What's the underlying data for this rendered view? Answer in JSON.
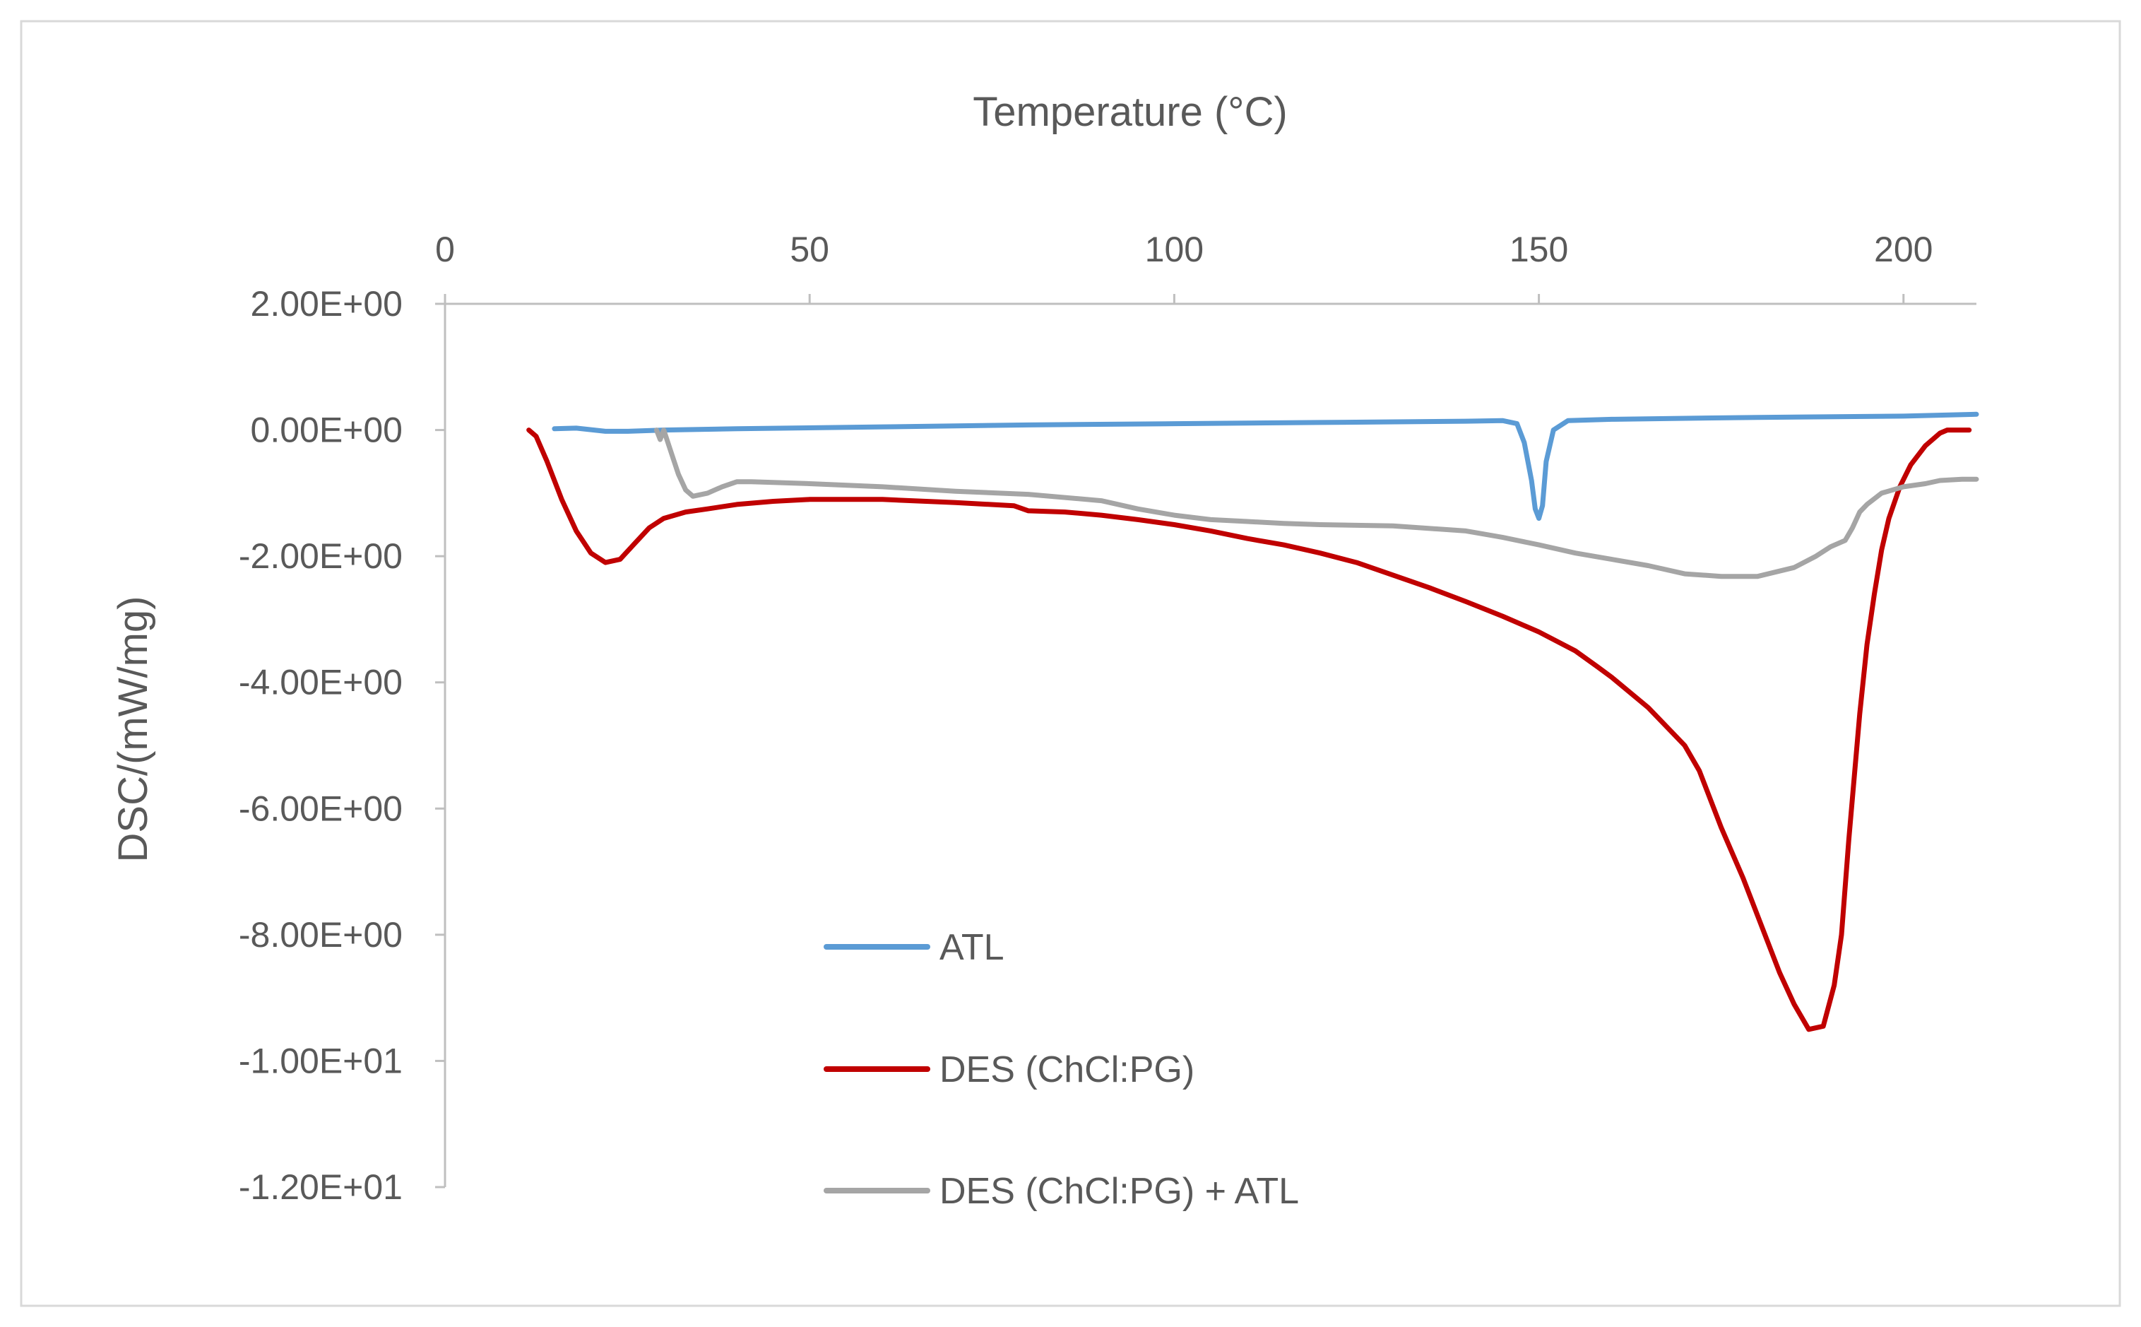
{
  "chart_data": {
    "type": "line",
    "title": "",
    "xlabel": "Temperature (°C)",
    "ylabel": "DSC/(mW/mg)",
    "x_axis_position": "top",
    "xlim": [
      0,
      210
    ],
    "ylim": [
      -12,
      2
    ],
    "x_ticks": [
      0,
      50,
      100,
      150,
      200
    ],
    "x_tick_labels": [
      "0",
      "50",
      "100",
      "150",
      "200"
    ],
    "y_ticks": [
      2,
      0,
      -2,
      -4,
      -6,
      -8,
      -10,
      -12
    ],
    "y_tick_labels": [
      "2.00E+00",
      "0.00E+00",
      "-2.00E+00",
      "-4.00E+00",
      "-6.00E+00",
      "-8.00E+00",
      "-1.00E+01",
      "-1.20E+01"
    ],
    "grid": false,
    "legend_position": "bottom-center-left",
    "series": [
      {
        "name": "ATL",
        "color": "#5B9BD5",
        "x": [
          15,
          18,
          22,
          25,
          30,
          40,
          60,
          80,
          100,
          120,
          140,
          145,
          147,
          148,
          149,
          149.5,
          150,
          150.5,
          151,
          152,
          154,
          160,
          180,
          200,
          210
        ],
        "y": [
          0.02,
          0.03,
          -0.02,
          -0.02,
          0.0,
          0.02,
          0.05,
          0.08,
          0.1,
          0.12,
          0.14,
          0.15,
          0.1,
          -0.2,
          -0.8,
          -1.25,
          -1.4,
          -1.2,
          -0.5,
          0.0,
          0.15,
          0.17,
          0.2,
          0.22,
          0.25
        ]
      },
      {
        "name": "DES (ChCl:PG)",
        "color": "#C00000",
        "x": [
          11.5,
          12.5,
          14,
          16,
          18,
          20,
          22,
          24,
          26,
          28,
          30,
          33,
          36,
          40,
          45,
          50,
          60,
          70,
          78,
          80,
          85,
          90,
          95,
          100,
          105,
          110,
          115,
          120,
          125,
          130,
          135,
          140,
          145,
          150,
          155,
          158,
          160,
          165,
          170,
          172,
          175,
          178,
          180,
          183,
          185,
          187,
          189,
          190.5,
          191.5,
          192.5,
          194,
          195,
          196,
          197,
          198,
          199.5,
          201,
          203,
          205,
          206,
          207,
          208,
          209
        ],
        "y": [
          0.0,
          -0.1,
          -0.5,
          -1.1,
          -1.6,
          -1.95,
          -2.1,
          -2.05,
          -1.8,
          -1.55,
          -1.4,
          -1.3,
          -1.25,
          -1.18,
          -1.13,
          -1.1,
          -1.1,
          -1.15,
          -1.2,
          -1.28,
          -1.3,
          -1.35,
          -1.42,
          -1.5,
          -1.6,
          -1.72,
          -1.82,
          -1.95,
          -2.1,
          -2.3,
          -2.5,
          -2.72,
          -2.95,
          -3.2,
          -3.5,
          -3.75,
          -3.92,
          -4.4,
          -5.0,
          -5.4,
          -6.3,
          -7.1,
          -7.7,
          -8.6,
          -9.1,
          -9.5,
          -9.45,
          -8.8,
          -8.0,
          -6.5,
          -4.5,
          -3.4,
          -2.6,
          -1.9,
          -1.4,
          -0.9,
          -0.55,
          -0.25,
          -0.05,
          0.0,
          0.0,
          0.0,
          0.0
        ]
      },
      {
        "name": "DES (ChCl:PG) + ATL",
        "color": "#A5A5A5",
        "x": [
          29,
          29.5,
          30,
          31,
          32,
          33,
          34,
          36,
          38,
          40,
          42,
          45,
          50,
          60,
          70,
          80,
          90,
          95,
          100,
          105,
          110,
          115,
          120,
          130,
          140,
          145,
          150,
          155,
          160,
          165,
          170,
          175,
          180,
          185,
          188,
          190,
          192,
          193,
          194,
          195,
          197,
          200,
          203,
          205,
          208,
          210
        ],
        "y": [
          0.0,
          -0.15,
          0.0,
          -0.35,
          -0.7,
          -0.95,
          -1.05,
          -1.0,
          -0.9,
          -0.82,
          -0.82,
          -0.83,
          -0.85,
          -0.9,
          -0.97,
          -1.02,
          -1.12,
          -1.25,
          -1.35,
          -1.42,
          -1.45,
          -1.48,
          -1.5,
          -1.52,
          -1.6,
          -1.7,
          -1.82,
          -1.95,
          -2.05,
          -2.15,
          -2.28,
          -2.32,
          -2.32,
          -2.18,
          -2.0,
          -1.85,
          -1.75,
          -1.55,
          -1.3,
          -1.18,
          -1.0,
          -0.9,
          -0.85,
          -0.8,
          -0.78,
          -0.78
        ]
      }
    ]
  }
}
